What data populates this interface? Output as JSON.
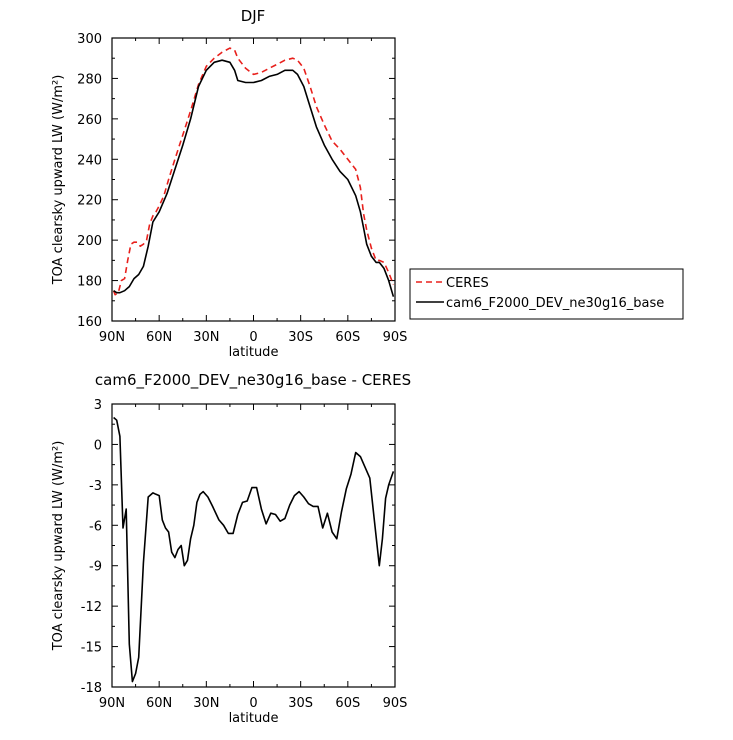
{
  "chart_data": [
    {
      "type": "line",
      "title": "DJF",
      "xlabel": "latitude",
      "ylabel": "TOA clearsky upward LW (W/m²)",
      "xlim": [
        90,
        -90
      ],
      "ylim": [
        160,
        300
      ],
      "xticks": [
        90,
        60,
        30,
        0,
        -30,
        -60,
        -90
      ],
      "xtick_labels": [
        "90N",
        "60N",
        "30N",
        "0",
        "30S",
        "60S",
        "90S"
      ],
      "yticks": [
        160,
        180,
        200,
        220,
        240,
        260,
        280,
        300
      ],
      "ytick_labels": [
        "160",
        "180",
        "200",
        "220",
        "240",
        "260",
        "280",
        "300"
      ],
      "grid": false,
      "legend": "right",
      "series": [
        {
          "name": "CERES",
          "color": "#e8201c",
          "dash": "dashed",
          "x": [
            89,
            88,
            86,
            84,
            82,
            80,
            78,
            76,
            74,
            72,
            70,
            68,
            66,
            64,
            62,
            60,
            57,
            54,
            50,
            45,
            40,
            35,
            30,
            25,
            20,
            15,
            12,
            10,
            5,
            0,
            -5,
            -10,
            -15,
            -20,
            -25,
            -28,
            -32,
            -36,
            -40,
            -45,
            -50,
            -55,
            -60,
            -65,
            -68,
            -70,
            -72,
            -75,
            -78,
            -80,
            -83,
            -86,
            -89
          ],
          "y": [
            175,
            173,
            174,
            180,
            181,
            190,
            198,
            199,
            199,
            197,
            198,
            200,
            208,
            212,
            214,
            217,
            222,
            230,
            240,
            252,
            264,
            277,
            286,
            290,
            293,
            295,
            294,
            290,
            285,
            282,
            283,
            285,
            287,
            289,
            290,
            289,
            285,
            276,
            266,
            257,
            249,
            245,
            240,
            235,
            226,
            213,
            205,
            196,
            190,
            190,
            189,
            184,
            178
          ]
        },
        {
          "name": "cam6_F2000_DEV_ne30g16_base",
          "color": "#000000",
          "dash": "solid",
          "x": [
            89,
            87,
            85,
            82,
            79,
            76,
            73,
            70,
            67,
            64,
            60,
            55,
            50,
            45,
            40,
            35,
            30,
            25,
            20,
            15,
            12,
            10,
            5,
            0,
            -5,
            -10,
            -15,
            -20,
            -25,
            -28,
            -32,
            -36,
            -40,
            -45,
            -50,
            -55,
            -60,
            -65,
            -68,
            -70,
            -72,
            -75,
            -78,
            -80,
            -83,
            -86,
            -89
          ],
          "y": [
            175,
            174,
            174,
            175,
            177,
            181,
            183,
            187,
            197,
            209,
            214,
            223,
            235,
            247,
            260,
            276,
            284,
            288,
            289,
            288,
            284,
            279,
            278,
            278,
            279,
            281,
            282,
            284,
            284,
            282,
            276,
            266,
            256,
            247,
            240,
            234,
            230,
            222,
            214,
            206,
            198,
            192,
            189,
            189,
            186,
            180,
            172
          ]
        }
      ]
    },
    {
      "type": "line",
      "title": "cam6_F2000_DEV_ne30g16_base - CERES",
      "xlabel": "latitude",
      "ylabel": "TOA clearsky upward LW (W/m²)",
      "xlim": [
        90,
        -90
      ],
      "ylim": [
        -18,
        3
      ],
      "xticks": [
        90,
        60,
        30,
        0,
        -30,
        -60,
        -90
      ],
      "xtick_labels": [
        "90N",
        "60N",
        "30N",
        "0",
        "30S",
        "60S",
        "90S"
      ],
      "yticks": [
        -18,
        -15,
        -12,
        -9,
        -6,
        -3,
        0,
        3
      ],
      "ytick_labels": [
        "-18",
        "-15",
        "-12",
        "-9",
        "-6",
        "-3",
        "0",
        "3"
      ],
      "grid": false,
      "series": [
        {
          "color": "#000000",
          "dash": "solid",
          "x": [
            89,
            87,
            85,
            83,
            81,
            79,
            77,
            75,
            73,
            70,
            67,
            64,
            62,
            60,
            58,
            56,
            54,
            52,
            50,
            48,
            46,
            44,
            42,
            40,
            38,
            36,
            34,
            32,
            29,
            26,
            22,
            19,
            16,
            13,
            10,
            7,
            4,
            1,
            -2,
            -5,
            -8,
            -11,
            -14,
            -17,
            -20,
            -23,
            -26,
            -29,
            -32,
            -35,
            -38,
            -41,
            -44,
            -47,
            -50,
            -53,
            -56,
            -59,
            -62,
            -65,
            -68,
            -71,
            -74,
            -77,
            -80,
            -82,
            -84,
            -86,
            -89
          ],
          "y": [
            2.0,
            1.8,
            0.6,
            -6.2,
            -4.8,
            -14.8,
            -17.6,
            -17.0,
            -15.8,
            -8.8,
            -3.9,
            -3.6,
            -3.7,
            -3.8,
            -5.6,
            -6.2,
            -6.5,
            -8.0,
            -8.4,
            -7.8,
            -7.5,
            -9.0,
            -8.6,
            -7.0,
            -6.0,
            -4.3,
            -3.7,
            -3.5,
            -3.9,
            -4.6,
            -5.6,
            -6.0,
            -6.6,
            -6.6,
            -5.2,
            -4.3,
            -4.2,
            -3.2,
            -3.2,
            -4.8,
            -5.9,
            -5.1,
            -5.2,
            -5.7,
            -5.5,
            -4.5,
            -3.8,
            -3.5,
            -3.9,
            -4.4,
            -4.6,
            -4.6,
            -6.2,
            -5.1,
            -6.5,
            -7.0,
            -5.0,
            -3.3,
            -2.2,
            -0.6,
            -0.9,
            -1.7,
            -2.5,
            -5.8,
            -9.0,
            -7.0,
            -4.0,
            -3.0,
            -2.0
          ]
        }
      ]
    }
  ]
}
